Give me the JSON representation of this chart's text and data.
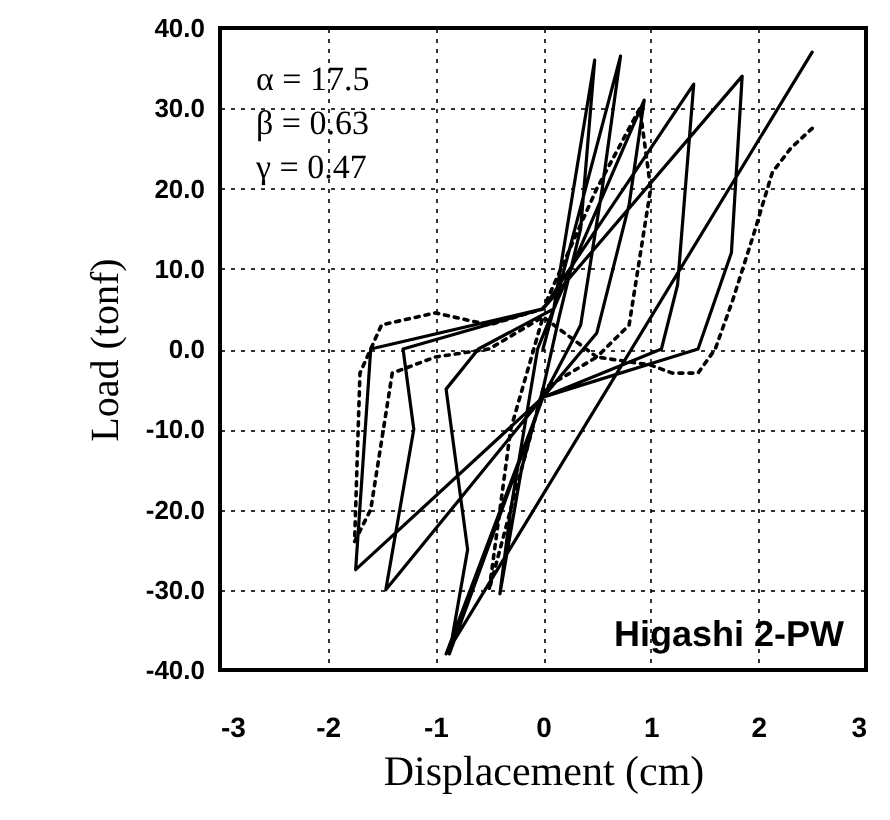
{
  "chart_data": {
    "type": "line",
    "xlabel": "Displacement (cm)",
    "ylabel": "Load (tonf)",
    "xlim": [
      -3,
      3
    ],
    "xticks": [
      -3,
      -2,
      -1,
      0,
      1,
      2,
      3
    ],
    "ylim": [
      -40,
      40
    ],
    "yticks": [
      {
        "value": -40,
        "label": "-40.0"
      },
      {
        "value": -30,
        "label": "-30.0"
      },
      {
        "value": -20,
        "label": "-20.0"
      },
      {
        "value": -10,
        "label": "-10.0"
      },
      {
        "value": 0,
        "label": "0.0"
      },
      {
        "value": 10,
        "label": "10.0"
      },
      {
        "value": 20,
        "label": "20.0"
      },
      {
        "value": 30,
        "label": "30.0"
      },
      {
        "value": 40,
        "label": "40.0"
      }
    ],
    "grid": true,
    "marker": "none",
    "annotations": [
      "α = 17.5",
      "β = 0.63",
      "γ = 0.47",
      "Higashi  2-PW"
    ],
    "series": [
      {
        "color": "#000000",
        "line_style": "solid",
        "x": [
          0,
          0.1,
          0.48,
          0.35,
          0.15,
          0,
          -0.2,
          -0.4,
          -0.3,
          -0.05,
          0.1,
          0.72,
          0.55,
          0.35,
          0,
          -0.87,
          -0.7,
          -0.9,
          -0.6,
          0.1,
          0.94,
          0.8,
          0.5,
          0,
          -1.46,
          -1.2,
          -1.3,
          0,
          1.4,
          1.25,
          1.1,
          0,
          -1.74,
          -1.6,
          0,
          1.85,
          1.75,
          1.44,
          0,
          -0.9,
          2.5
        ],
        "values": [
          0,
          5,
          36,
          15,
          4,
          -5,
          -15,
          -30.5,
          -20,
          0,
          5,
          36.5,
          20,
          3,
          -6,
          -38,
          -25,
          -5,
          0,
          5,
          31,
          18,
          2,
          -6,
          -30,
          -10,
          0,
          5,
          33,
          8,
          0,
          -6,
          -27.5,
          0,
          5,
          34,
          12,
          0,
          -6,
          -38,
          37
        ]
      },
      {
        "color": "#000000",
        "line_style": "dotted",
        "x": [
          2.5,
          2.3,
          2.13,
          1.95,
          1.76,
          1.6,
          1.44,
          1.2,
          1.0,
          0.5,
          0,
          -0.3,
          -0.5,
          -0.3,
          0,
          0.5,
          0.8,
          1.0,
          0.9,
          0.5,
          0,
          -0.5,
          -1.0,
          -1.5,
          -1.7,
          -1.75,
          -1.6,
          -1.4,
          -1,
          -0.5,
          0
        ],
        "values": [
          27.5,
          25,
          22,
          14,
          6,
          0,
          -3,
          -3,
          -2,
          -1,
          -5,
          -20,
          -30,
          -10,
          4,
          -1,
          3,
          20,
          30,
          20,
          5,
          3,
          4.5,
          3,
          -3,
          -24,
          -20,
          -3,
          -1,
          0,
          4
        ]
      }
    ]
  }
}
